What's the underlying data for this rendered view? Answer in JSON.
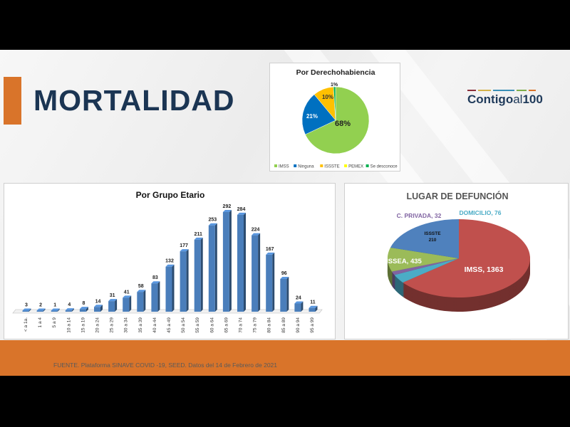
{
  "title": "MORTALIDAD",
  "logo": {
    "main": "Contigo",
    "al": "al",
    "num": "100"
  },
  "footer": {
    "source": "FUENTE. Plataforma SINAVE COVID -19, SEED. Datos del 14 de Febrero de 2021"
  },
  "chart_data": [
    {
      "type": "pie",
      "title": "Por Derechohabiencia",
      "categories": [
        "IMSS",
        "Ninguna",
        "ISSSTE",
        "PEMEX",
        "Se desconoce"
      ],
      "values": [
        68,
        21,
        10,
        0,
        1
      ],
      "labels": [
        "68%",
        "21%",
        "10%",
        "",
        "1%"
      ],
      "colors": [
        "#92d050",
        "#0070c0",
        "#ffc000",
        "#ffff00",
        "#00b050"
      ],
      "legend": "bottom"
    },
    {
      "type": "bar",
      "title": "Por Grupo Etario",
      "categories": [
        "< a 1a.",
        "1 a 4",
        "5 a 9",
        "10 a 14",
        "15 a 19",
        "20 a 24",
        "25 a 29",
        "30 a 34",
        "35 a 39",
        "40 a 44",
        "45 a 49",
        "50 a 54",
        "55 a 59",
        "60 a 64",
        "65 a 69",
        "70 a 74",
        "75 a 79",
        "80 a 84",
        "85 a 89",
        "90 a 94",
        "95 a 99"
      ],
      "values": [
        3,
        2,
        1,
        4,
        8,
        14,
        31,
        41,
        58,
        83,
        132,
        177,
        211,
        253,
        292,
        284,
        224,
        167,
        96,
        24,
        11
      ],
      "color": "#4a7ebb",
      "ylim": [
        0,
        300
      ],
      "grid": false
    },
    {
      "type": "pie",
      "title": "LUGAR DE DEFUNCIÓN",
      "categories": [
        "IMSS",
        "DOMICILIO",
        "C. PRIVADA",
        "ISSSTE",
        "ISSEA"
      ],
      "values": [
        1363,
        76,
        32,
        210,
        435
      ],
      "labels": [
        "IMSS, 1363",
        "DOMICILIO, 76",
        "C. PRIVADA, 32",
        "ISSSTE\n210",
        "ISSEA, 435"
      ],
      "colors": [
        "#c0504d",
        "#4bacc6",
        "#8064a2",
        "#9bbb59",
        "#4f81bd"
      ]
    }
  ]
}
